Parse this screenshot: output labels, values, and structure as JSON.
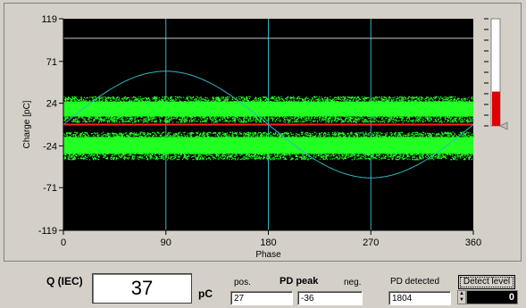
{
  "colors": {
    "plot_background": "#000000",
    "pd_points": "#22ff22",
    "sine_and_grid": "#2fb8c4",
    "detect_line": "#ff2020",
    "threshold_line": "#c8c8c8",
    "level_bar_fill": "#e00000"
  },
  "chart_data": {
    "type": "scatter",
    "xlabel": "Phase",
    "ylabel": "Charge [pC]",
    "xlim": [
      0,
      360
    ],
    "ylim": [
      -119,
      119
    ],
    "x_ticks": [
      "0",
      "90",
      "180",
      "270",
      "360"
    ],
    "y_ticks": [
      "119",
      "71",
      "24",
      "-24",
      "-71",
      "-119"
    ],
    "grid": "vertical lines at 90, 180, 270",
    "series": [
      {
        "kind": "pd_band",
        "y_min": 6,
        "y_max": 29,
        "x_range": [
          0,
          360
        ]
      },
      {
        "kind": "pd_band",
        "y_min": -36,
        "y_max": -11,
        "x_range": [
          0,
          360
        ]
      },
      {
        "kind": "reference_sine",
        "amplitude": 60,
        "offset": 0,
        "period": 360
      },
      {
        "kind": "threshold_line",
        "y": 97
      },
      {
        "kind": "detect_line",
        "y": 0
      }
    ]
  },
  "level_bar": {
    "fill_fraction": 0.32
  },
  "bottom": {
    "q_label": "Q (IEC)",
    "q_value": "37",
    "q_unit": "pC",
    "pos_label": "pos.",
    "pd_peak_label": "PD peak",
    "neg_label": "neg.",
    "pos_value": "27",
    "neg_value": "-36",
    "pd_detected_label": "PD detected",
    "pd_detected_value": "1804",
    "detect_level_button": "Detect level",
    "detect_level_value": "0"
  }
}
